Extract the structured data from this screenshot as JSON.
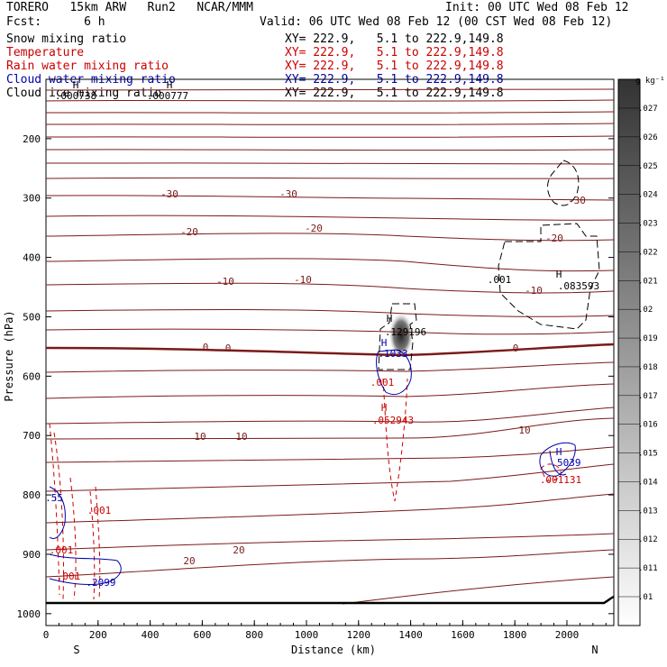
{
  "header": {
    "model": "TORERO   15km ARW   Run2   NCAR/MMM",
    "fcst": "Fcst:      6 h",
    "init": "Init: 00 UTC Wed 08 Feb 12",
    "valid": "Valid: 06 UTC Wed 08 Feb 12 (00 CST Wed 08 Feb 12)",
    "fields": [
      {
        "name": "Snow mixing ratio",
        "xy": "XY= 222.9,   5.1 to 222.9,149.8",
        "color": "#000000"
      },
      {
        "name": "Temperature",
        "xy": "XY= 222.9,   5.1 to 222.9,149.8",
        "color": "#cc0000"
      },
      {
        "name": "Rain water mixing ratio",
        "xy": "XY= 222.9,   5.1 to 222.9,149.8",
        "color": "#cc0000"
      },
      {
        "name": "Cloud water mixing ratio",
        "xy": "XY= 222.9,   5.1 to 222.9,149.8",
        "color": "#0000aa"
      },
      {
        "name": "Cloud ice mixing ratio",
        "xy": "XY= 222.9,   5.1 to 222.9,149.8",
        "color": "#000000"
      }
    ]
  },
  "chart_data": {
    "type": "cross-section",
    "xlabel": "Distance (km)",
    "ylabel": "Pressure (hPa)",
    "xlim": [
      0,
      2180
    ],
    "ylim": [
      1020,
      100
    ],
    "x_ticks": [
      0,
      200,
      400,
      600,
      800,
      1000,
      1200,
      1400,
      1600,
      1800,
      2000
    ],
    "y_ticks": [
      200,
      300,
      400,
      500,
      600,
      700,
      800,
      900,
      1000
    ],
    "x_end_labels": {
      "left": "S",
      "right": "N"
    },
    "colorbar": {
      "unit": "g kg⁻¹",
      "labels": [
        ".01",
        ".011",
        ".012",
        ".013",
        ".014",
        ".015",
        ".016",
        ".017",
        ".018",
        ".019",
        ".02",
        ".021",
        ".022",
        ".023",
        ".024",
        ".025",
        ".026",
        ".027"
      ]
    },
    "temperature_labels": [
      "-30",
      "-30",
      "-30",
      "-20",
      "-20",
      "-20",
      "-10",
      "-10",
      "-10",
      "0",
      "0",
      "0",
      "10",
      "10",
      "10",
      "20",
      "20"
    ],
    "annotations": [
      {
        "text": "H",
        "color": "#000000"
      },
      {
        "text": ".000738",
        "color": "#000000"
      },
      {
        "text": "H",
        "color": "#000000"
      },
      {
        "text": ".000777",
        "color": "#000000"
      },
      {
        "text": "H",
        "color": "#000000"
      },
      {
        "text": ".129196",
        "color": "#000000"
      },
      {
        "text": "H",
        "color": "#0000aa"
      },
      {
        "text": ".1033",
        "color": "#0000aa"
      },
      {
        "text": ".001",
        "color": "#cc0000"
      },
      {
        "text": "H",
        "color": "#cc0000"
      },
      {
        "text": ".052943",
        "color": "#cc0000"
      },
      {
        "text": ".001",
        "color": "#000000"
      },
      {
        "text": "H",
        "color": "#000000"
      },
      {
        "text": ".083593",
        "color": "#000000"
      },
      {
        "text": "H",
        "color": "#0000aa"
      },
      {
        "text": ".5039",
        "color": "#0000aa"
      },
      {
        "text": ".001131",
        "color": "#cc0000"
      },
      {
        "text": ".55",
        "color": "#0000aa"
      },
      {
        "text": ".001",
        "color": "#cc0000"
      },
      {
        "text": ".001",
        "color": "#cc0000"
      },
      {
        "text": ".001",
        "color": "#cc0000"
      },
      {
        "text": ".2099",
        "color": "#0000aa"
      }
    ]
  }
}
